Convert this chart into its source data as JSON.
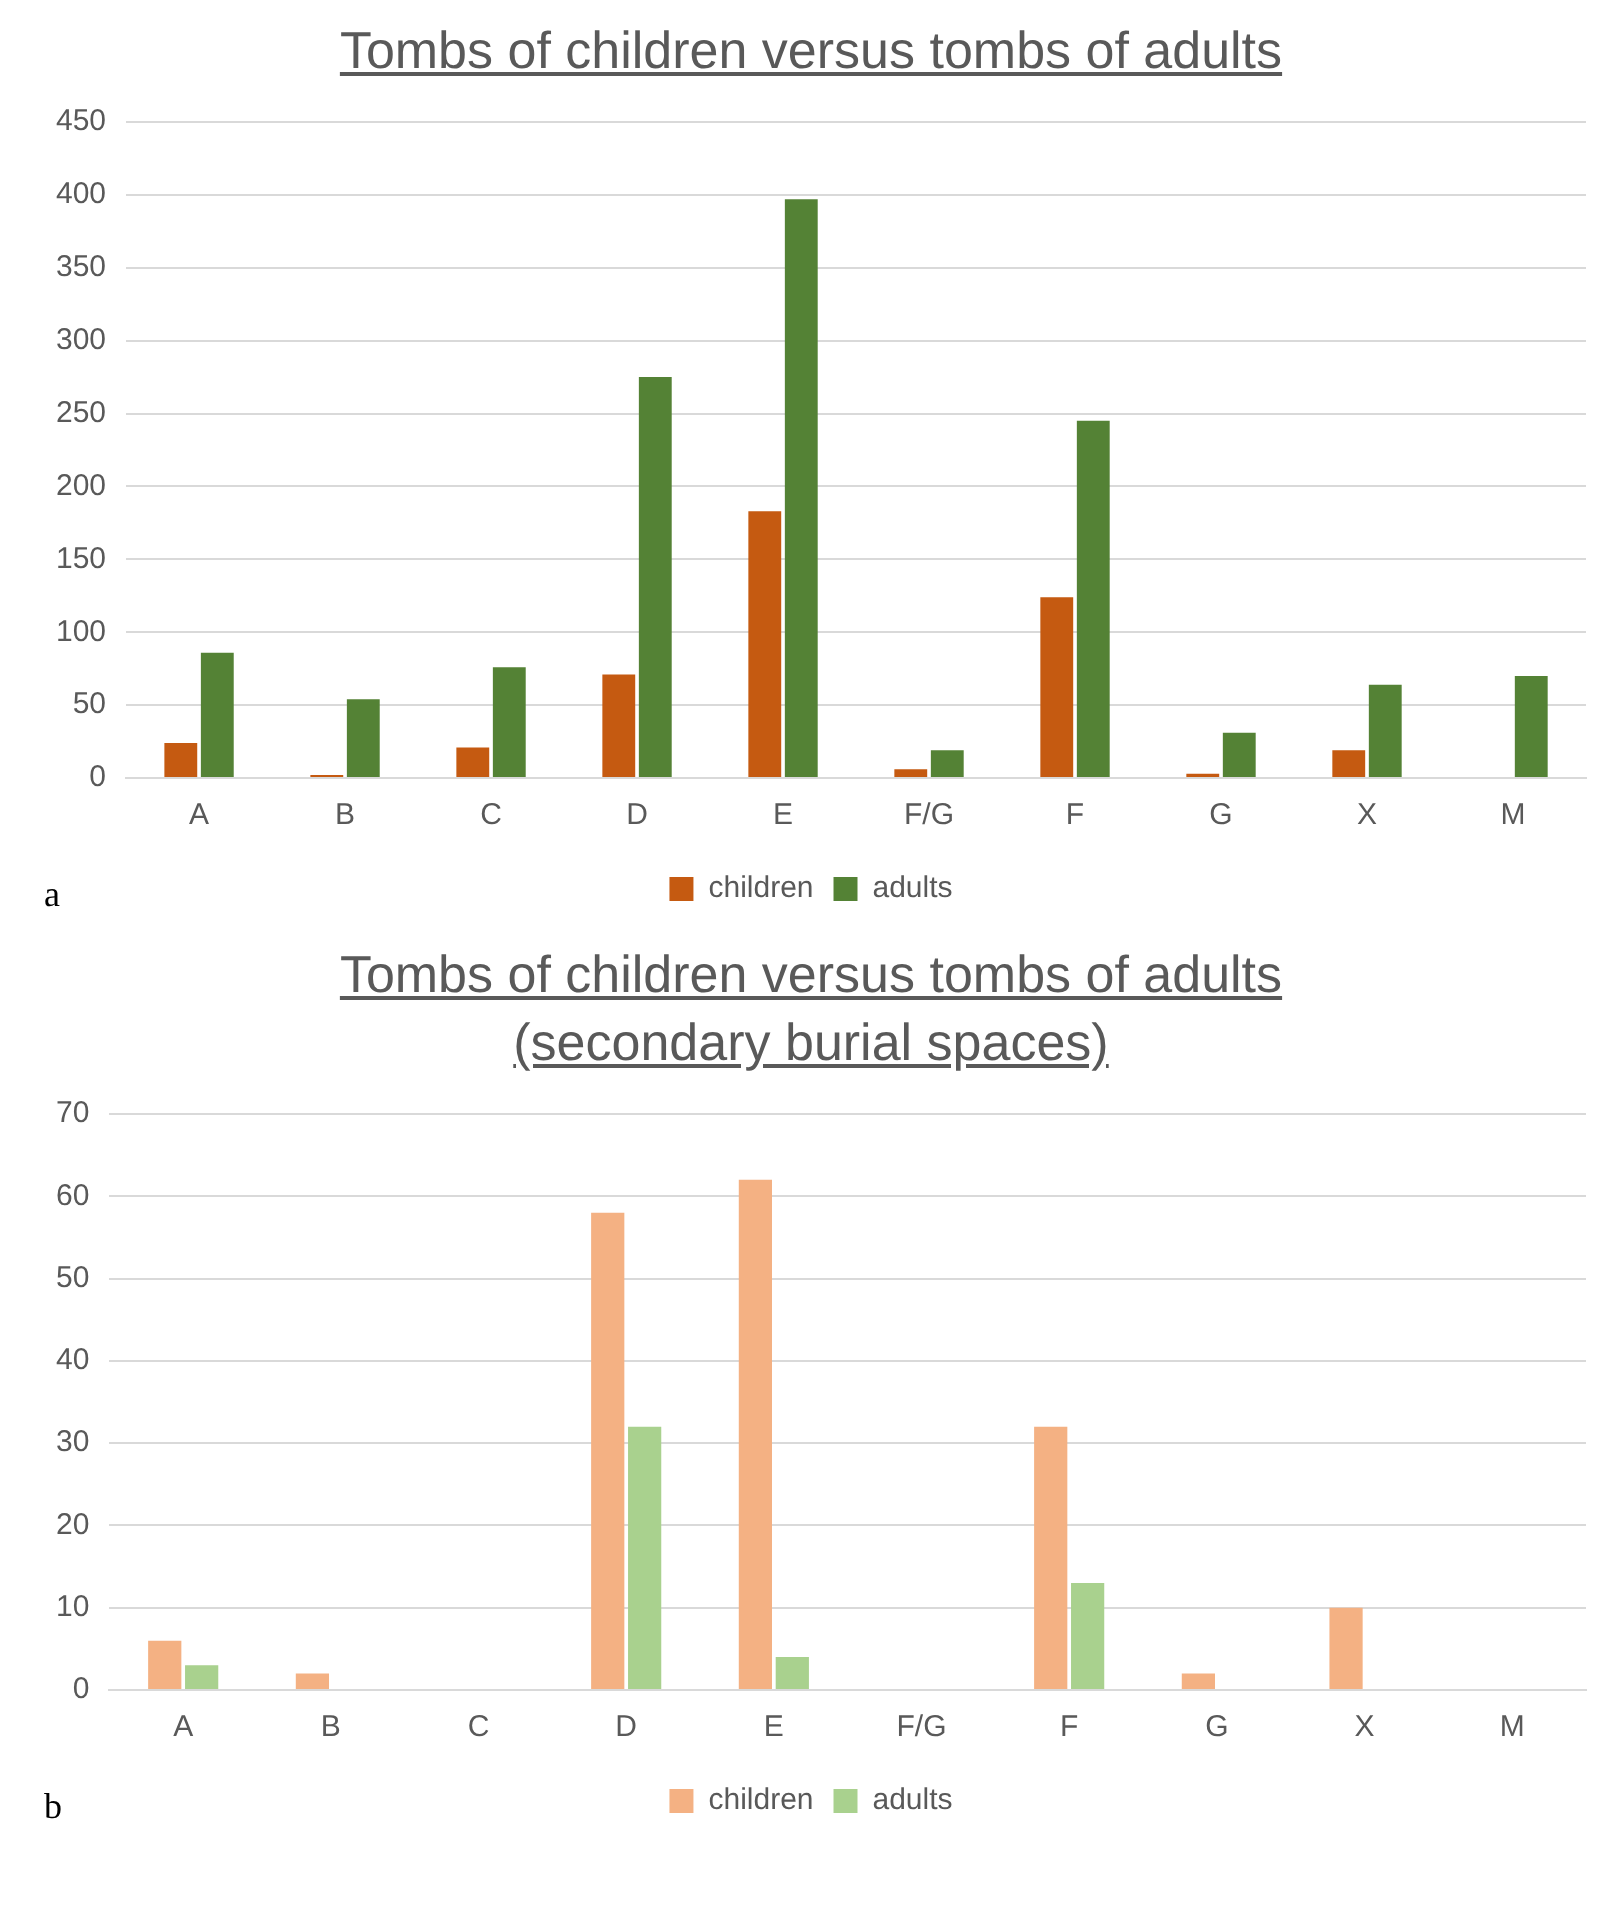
{
  "chart_data": [
    {
      "type": "bar",
      "title": "Tombs of children versus tombs of adults",
      "categories": [
        "A",
        "B",
        "C",
        "D",
        "E",
        "F/G",
        "F",
        "G",
        "X",
        "M"
      ],
      "series": [
        {
          "name": "children",
          "color": "#c55a11",
          "values": [
            24,
            2,
            21,
            71,
            183,
            6,
            124,
            3,
            19,
            0
          ]
        },
        {
          "name": "adults",
          "color": "#548235",
          "values": [
            86,
            54,
            76,
            275,
            397,
            19,
            245,
            31,
            64,
            70
          ]
        }
      ],
      "ylim": [
        0,
        450
      ],
      "yticks": [
        0,
        50,
        100,
        150,
        200,
        250,
        300,
        350,
        400,
        450
      ],
      "grid": "y",
      "legend": "bottom",
      "annotations": [
        "a"
      ]
    },
    {
      "type": "bar",
      "title": "Tombs of children versus tombs of adults",
      "subtitle": "(secondary burial spaces)",
      "categories": [
        "A",
        "B",
        "C",
        "D",
        "E",
        "F/G",
        "F",
        "G",
        "X",
        "M"
      ],
      "series": [
        {
          "name": "children",
          "color": "#f4b183",
          "values": [
            6,
            2,
            0,
            58,
            62,
            0,
            32,
            2,
            10,
            0
          ]
        },
        {
          "name": "adults",
          "color": "#a9d18e",
          "values": [
            3,
            0,
            0,
            32,
            4,
            0,
            13,
            0,
            0,
            0
          ]
        }
      ],
      "ylim": [
        0,
        70
      ],
      "yticks": [
        0,
        10,
        20,
        30,
        40,
        50,
        60,
        70
      ],
      "grid": "y",
      "legend": "bottom",
      "annotations": [
        "b"
      ]
    }
  ]
}
